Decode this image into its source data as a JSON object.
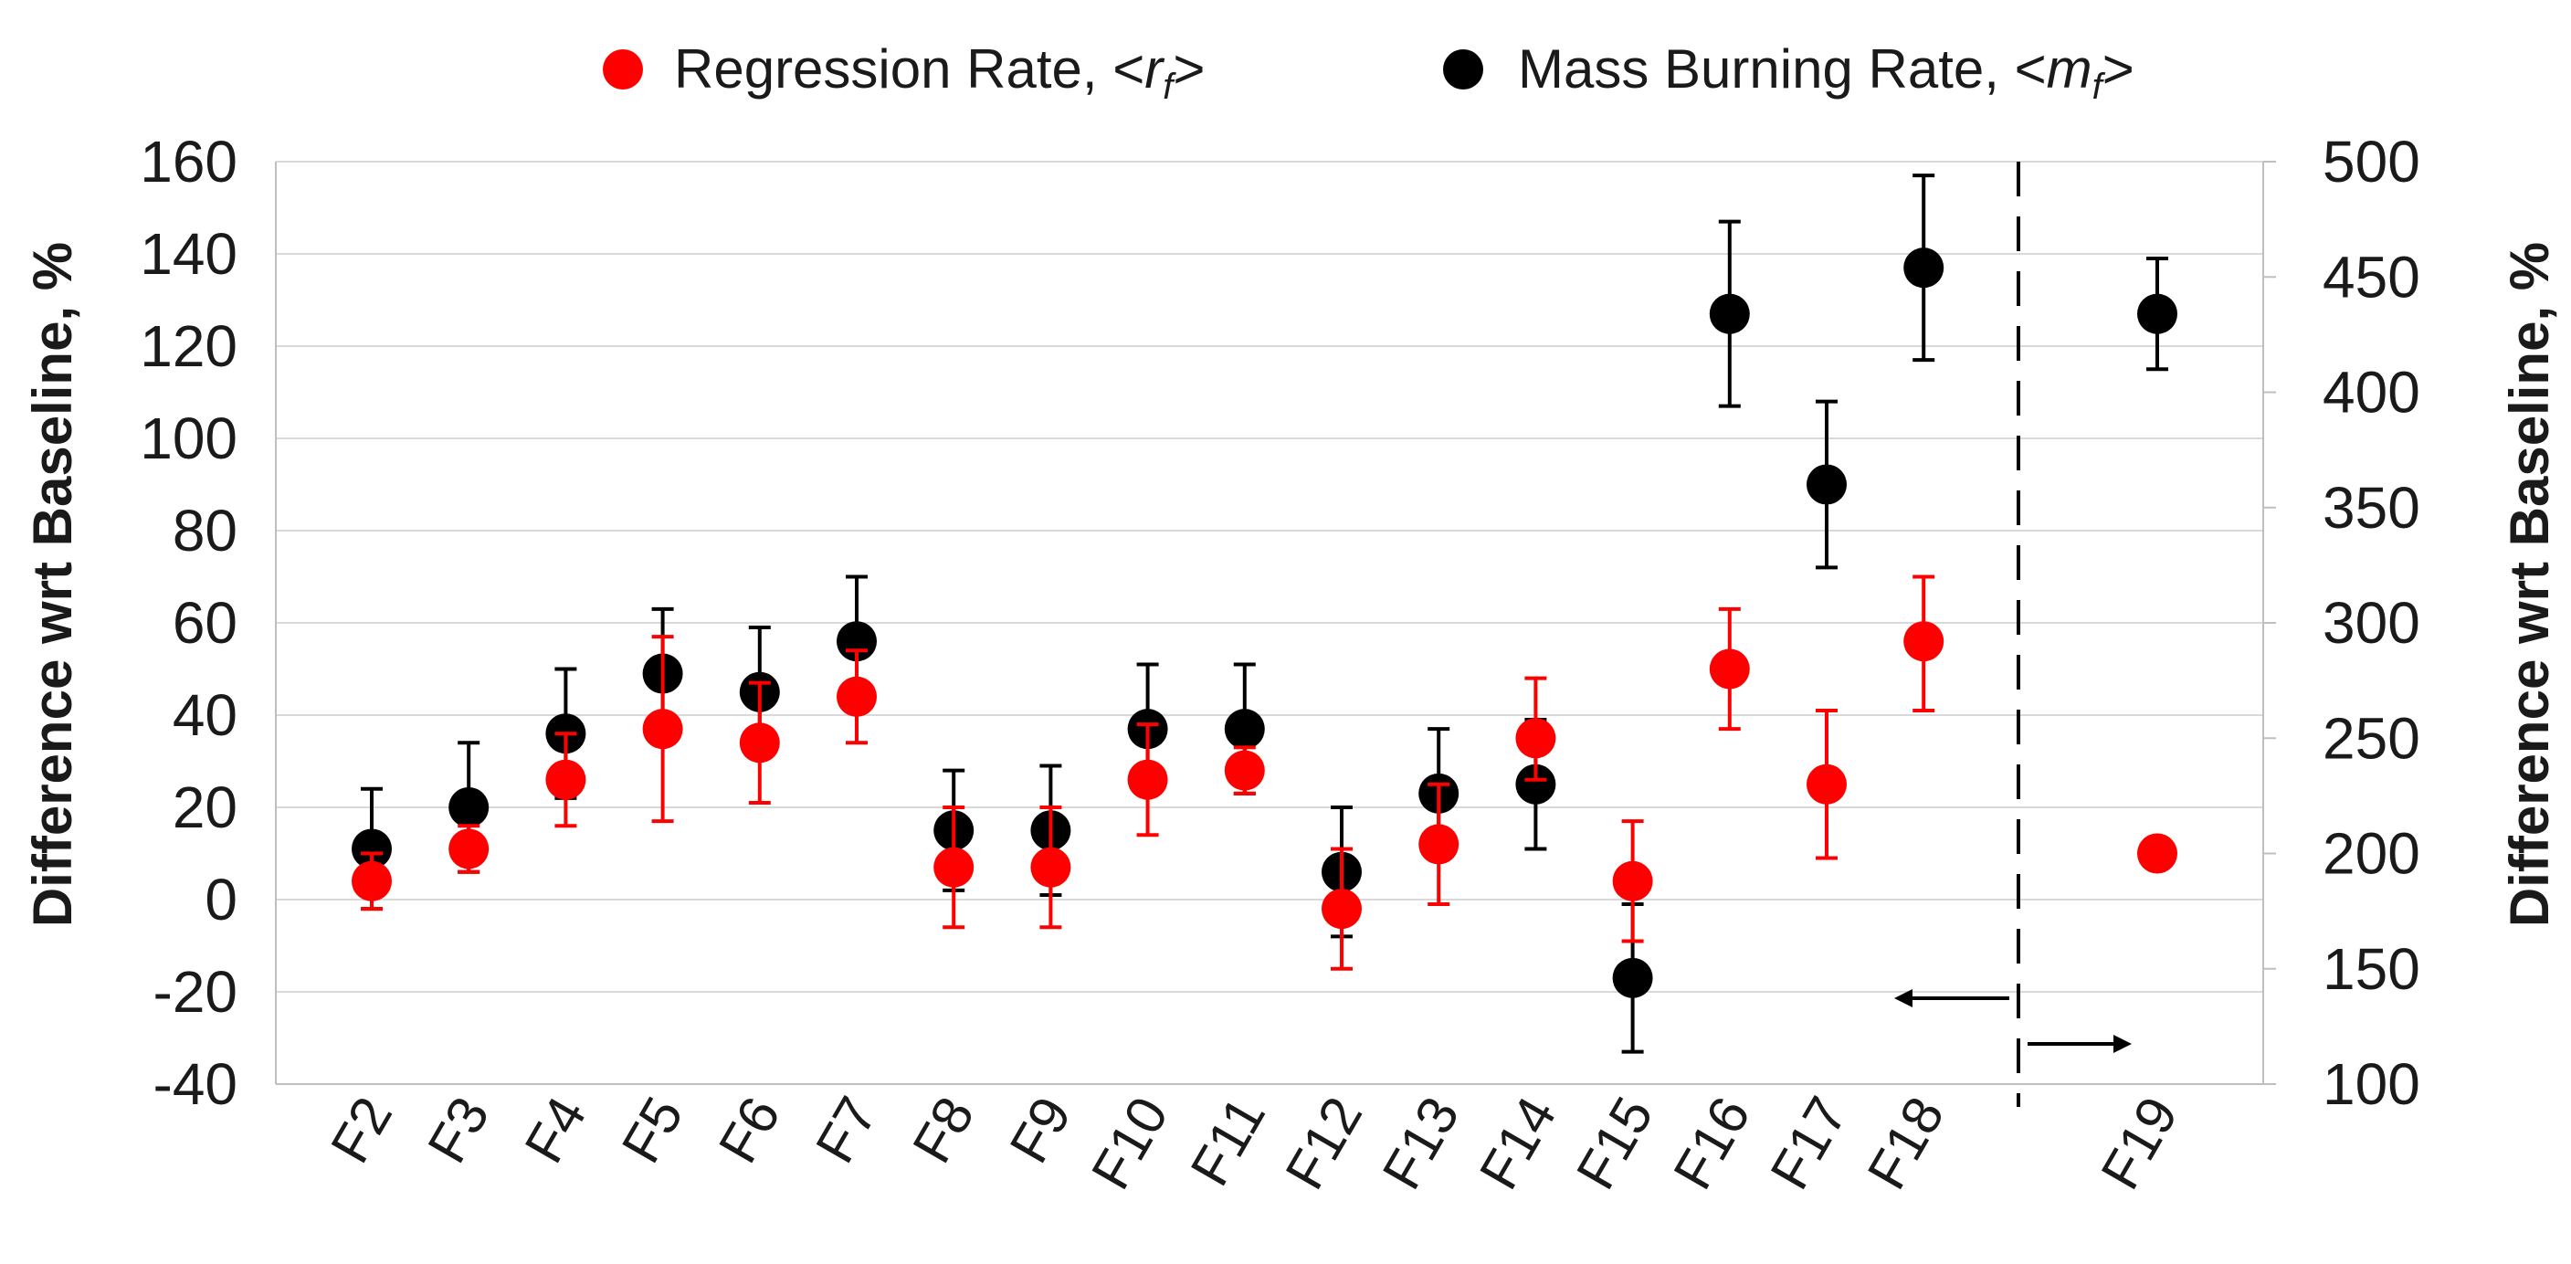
{
  "chart_data": {
    "type": "scatter",
    "title": "",
    "categories": [
      "F2",
      "F3",
      "F4",
      "F5",
      "F6",
      "F7",
      "F8",
      "F9",
      "F10",
      "F11",
      "F12",
      "F13",
      "F14",
      "F15",
      "F16",
      "F17",
      "F18",
      "F19"
    ],
    "ylabel_left": "Difference wrt Baseline, %",
    "ylabel_right": "Difference wrt Baseline, %",
    "ylim_left": [
      -40,
      160
    ],
    "ylim_right": [
      100,
      500
    ],
    "yticks_left": [
      -40,
      -20,
      0,
      20,
      40,
      60,
      80,
      100,
      120,
      140,
      160
    ],
    "yticks_right": [
      100,
      150,
      200,
      250,
      300,
      350,
      400,
      450,
      500
    ],
    "grid": true,
    "legend_position": "top",
    "divider_after": "F18",
    "series": [
      {
        "name": "Regression Rate",
        "legend_prefix": "Regression Rate, <",
        "legend_symbol": "r",
        "legend_sub": "f",
        "legend_suffix": ">",
        "color": "#ff0000",
        "axis": "left",
        "values": [
          4,
          11,
          26,
          37,
          34,
          44,
          7,
          7,
          26,
          28,
          -2,
          12,
          35,
          4,
          50,
          25,
          56,
          null
        ],
        "err_low": [
          6,
          5,
          10,
          20,
          13,
          10,
          13,
          13,
          12,
          5,
          13,
          13,
          9,
          13,
          13,
          16,
          15,
          null
        ],
        "err_high": [
          6,
          5,
          10,
          20,
          13,
          10,
          13,
          13,
          12,
          5,
          13,
          13,
          13,
          13,
          13,
          16,
          14,
          null
        ],
        "values_right_axis": [
          null,
          null,
          null,
          null,
          null,
          null,
          null,
          null,
          null,
          null,
          null,
          null,
          null,
          null,
          null,
          null,
          null,
          200
        ]
      },
      {
        "name": "Mass Burning Rate",
        "legend_prefix": "Mass Burning Rate, <",
        "legend_symbol": "m",
        "legend_sub": "f",
        "legend_suffix": ">",
        "color": "#000000",
        "axis": "left",
        "values": [
          11,
          20,
          36,
          49,
          45,
          56,
          15,
          15,
          37,
          37,
          6,
          23,
          25,
          -17,
          127,
          90,
          137,
          null
        ],
        "err_low": [
          13,
          14,
          14,
          14,
          14,
          14,
          13,
          14,
          14,
          14,
          14,
          14,
          14,
          16,
          20,
          18,
          20,
          null
        ],
        "err_high": [
          13,
          14,
          14,
          14,
          14,
          14,
          13,
          14,
          14,
          14,
          14,
          14,
          14,
          16,
          20,
          18,
          20,
          null
        ],
        "values_right_axis": [
          null,
          null,
          null,
          null,
          null,
          null,
          null,
          null,
          null,
          null,
          null,
          null,
          null,
          null,
          null,
          null,
          null,
          434
        ],
        "err_right_axis": [
          null,
          null,
          null,
          null,
          null,
          null,
          null,
          null,
          null,
          null,
          null,
          null,
          null,
          null,
          null,
          null,
          null,
          24
        ]
      }
    ]
  }
}
